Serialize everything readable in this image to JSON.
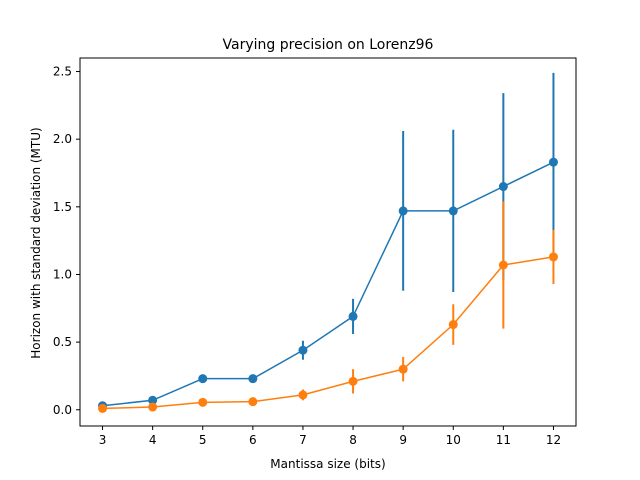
{
  "chart_data": {
    "type": "line",
    "title": "Varying precision on Lorenz96",
    "xlabel": "Mantissa size (bits)",
    "ylabel": "Horizon with standard deviation (MTU)",
    "x": [
      3,
      4,
      5,
      6,
      7,
      8,
      9,
      10,
      11,
      12
    ],
    "xlim": [
      2.55,
      12.45
    ],
    "ylim": [
      -0.12,
      2.6
    ],
    "xticks": [
      "3",
      "4",
      "5",
      "6",
      "7",
      "8",
      "9",
      "10",
      "11",
      "12"
    ],
    "yticks": [
      "0.0",
      "0.5",
      "1.0",
      "1.5",
      "2.0",
      "2.5"
    ],
    "grid": false,
    "series": [
      {
        "color": "#1f77b4",
        "values": [
          0.03,
          0.07,
          0.23,
          0.23,
          0.44,
          0.69,
          1.47,
          1.47,
          1.65,
          1.83
        ],
        "errors": [
          0.01,
          0.01,
          0.03,
          0.02,
          0.07,
          0.13,
          0.59,
          0.6,
          0.69,
          0.66
        ]
      },
      {
        "color": "#ff7f0e",
        "values": [
          0.01,
          0.02,
          0.055,
          0.06,
          0.11,
          0.21,
          0.3,
          0.63,
          1.07,
          1.13
        ],
        "errors": [
          0.005,
          0.008,
          0.01,
          0.01,
          0.04,
          0.09,
          0.09,
          0.15,
          0.47,
          0.2
        ]
      }
    ]
  }
}
